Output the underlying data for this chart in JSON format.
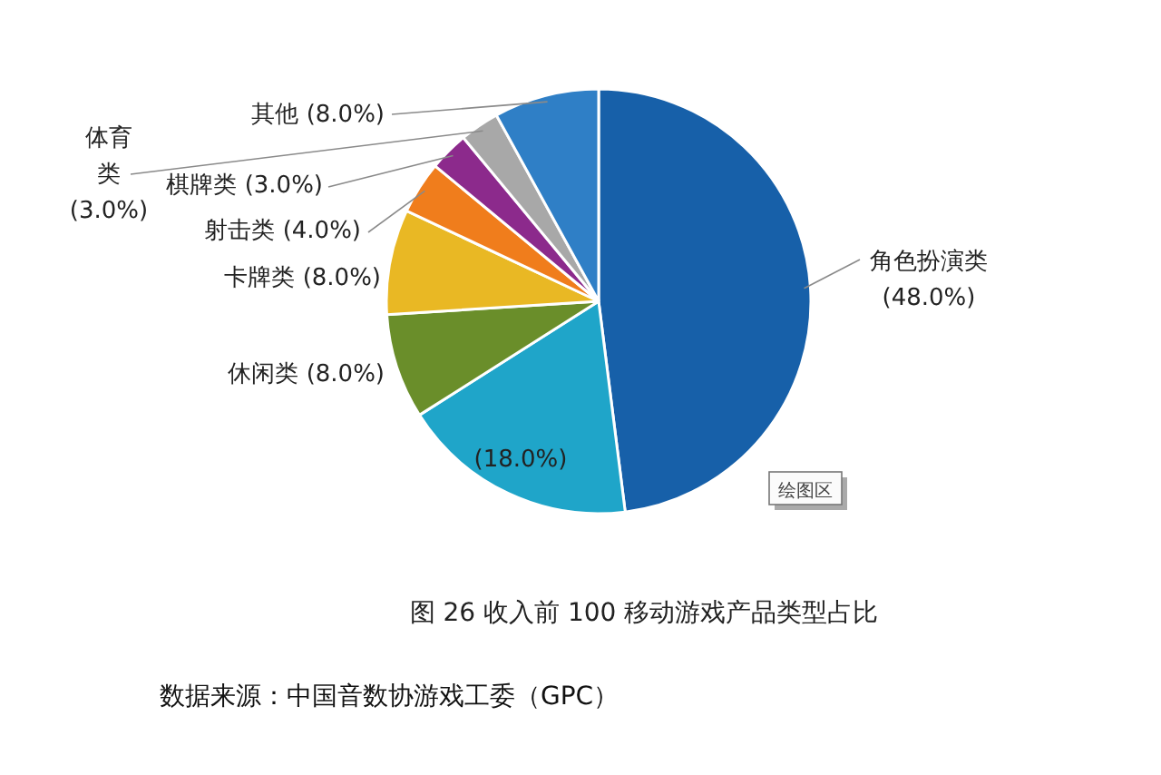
{
  "chart_data": {
    "type": "pie",
    "title": "图 26 收入前 100 移动游戏产品类型占比",
    "categories": [
      "角色扮演类",
      null,
      "休闲类",
      "卡牌类",
      "射击类",
      "棋牌类",
      "体育类",
      "其他"
    ],
    "values": [
      48,
      18,
      8,
      8,
      4,
      3,
      3,
      8
    ],
    "value_labels": [
      "(48.0%)",
      "(18.0%)",
      "(8.0%)",
      "(8.0%)",
      "(4.0%)",
      "(3.0%)",
      "(3.0%)",
      "(8.0%)"
    ],
    "colors": [
      "#1760a9",
      "#1fa5c9",
      "#6a8e2a",
      "#e9b824",
      "#f07d1c",
      "#8c2a8c",
      "#a8a8a8",
      "#2f7fc6"
    ],
    "annotations": [
      "数据来源：中国音数协游戏工委（GPC）",
      "绘图区"
    ]
  }
}
